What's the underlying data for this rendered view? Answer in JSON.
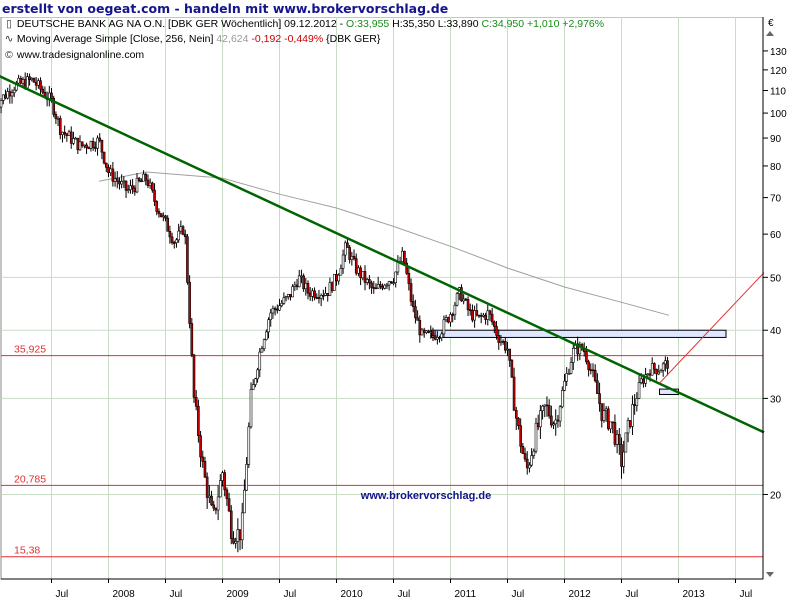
{
  "banner": {
    "text": "erstellt von oegeat.com - handeln mit www.brokervorschlag.de"
  },
  "header": {
    "line1_name": "DEUTSCHE BANK AG NA O.N. [DBK GER  Wöchentlich] 09.12.2012 - ",
    "line1_ohlc_o": "O:33,955",
    "line1_ohlc_hl": " H:35,350 L:33,890 ",
    "line1_close": "C:34,950 +1,010 +2,976%",
    "line2_name": "Moving Average Simple [Close, 256, Nein] ",
    "line2_value": "42,624",
    "line2_change": " -0,192 -0,449%",
    "line2_suffix": " {DBK GER}",
    "line3": "www.tradesignalonline.com",
    "icon1": "candlestick-icon",
    "icon2": "moving-average-icon",
    "icon3": "copyright-icon"
  },
  "currency_symbol": "€",
  "watermark": "www.brokervorschlag.de",
  "colors": {
    "up": "#ffffff",
    "down": "#c00000",
    "wick": "#000000",
    "trendline": "#006400",
    "ma": "#a0a0a0",
    "level": "#e03030",
    "projection": "#e03030",
    "banner": "#14148c",
    "watermark": "#14148c"
  },
  "chart_data": {
    "type": "candlestick",
    "scale": "log",
    "ylim": [
      14,
      150
    ],
    "y_ticks": [
      20,
      30,
      40,
      50,
      60,
      70,
      80,
      90,
      100,
      110,
      120,
      130
    ],
    "x_ticks": [
      "Jul",
      "2008",
      "Jul",
      "2009",
      "Jul",
      "2010",
      "Jul",
      "2011",
      "Jul",
      "2012",
      "Jul",
      "2013",
      "Jul"
    ],
    "x_tick_dates": [
      "2007-07",
      "2008-01",
      "2008-07",
      "2009-01",
      "2009-07",
      "2010-01",
      "2010-07",
      "2011-01",
      "2011-07",
      "2012-01",
      "2012-07",
      "2013-01",
      "2013-07"
    ],
    "price_path": [
      [
        "2007-01",
        103
      ],
      [
        "2007-03",
        112
      ],
      [
        "2007-05",
        115
      ],
      [
        "2007-07",
        105
      ],
      [
        "2007-08",
        93
      ],
      [
        "2007-10",
        87
      ],
      [
        "2007-12",
        89
      ],
      [
        "2008-01",
        78
      ],
      [
        "2008-03",
        72
      ],
      [
        "2008-05",
        76
      ],
      [
        "2008-06",
        68
      ],
      [
        "2008-08",
        58
      ],
      [
        "2008-09",
        62
      ],
      [
        "2008-10",
        30
      ],
      [
        "2008-11",
        22
      ],
      [
        "2008-12",
        18
      ],
      [
        "2009-01",
        22
      ],
      [
        "2009-02",
        17
      ],
      [
        "2009-03",
        17
      ],
      [
        "2009-04",
        30
      ],
      [
        "2009-05",
        37
      ],
      [
        "2009-06",
        43
      ],
      [
        "2009-08",
        46
      ],
      [
        "2009-09",
        50
      ],
      [
        "2009-10",
        47
      ],
      [
        "2009-12",
        47
      ],
      [
        "2010-01",
        50
      ],
      [
        "2010-02",
        57
      ],
      [
        "2010-03",
        52
      ],
      [
        "2010-05",
        47
      ],
      [
        "2010-06",
        49
      ],
      [
        "2010-07",
        50
      ],
      [
        "2010-08",
        55
      ],
      [
        "2010-09",
        44
      ],
      [
        "2010-10",
        39
      ],
      [
        "2010-11",
        39
      ],
      [
        "2010-12",
        40
      ],
      [
        "2011-01",
        43
      ],
      [
        "2011-02",
        47
      ],
      [
        "2011-03",
        43
      ],
      [
        "2011-04",
        42
      ],
      [
        "2011-05",
        43
      ],
      [
        "2011-06",
        39
      ],
      [
        "2011-07",
        37
      ],
      [
        "2011-08",
        27
      ],
      [
        "2011-09",
        22
      ],
      [
        "2011-10",
        26
      ],
      [
        "2011-11",
        29
      ],
      [
        "2011-12",
        27
      ],
      [
        "2012-01",
        32
      ],
      [
        "2012-02",
        37
      ],
      [
        "2012-03",
        37
      ],
      [
        "2012-04",
        33
      ],
      [
        "2012-05",
        28
      ],
      [
        "2012-06",
        27
      ],
      [
        "2012-07",
        23
      ],
      [
        "2012-08",
        28
      ],
      [
        "2012-09",
        32
      ],
      [
        "2012-10",
        34
      ],
      [
        "2012-11",
        34
      ],
      [
        "2012-12",
        34.95
      ]
    ],
    "moving_average": {
      "name": "Moving Average Simple [Close, 256, Nein]",
      "points": [
        [
          "2007-12",
          75
        ],
        [
          "2008-05",
          78
        ],
        [
          "2009-01",
          76
        ],
        [
          "2009-07",
          71
        ],
        [
          "2010-01",
          67
        ],
        [
          "2010-07",
          62
        ],
        [
          "2011-01",
          57
        ],
        [
          "2011-07",
          52
        ],
        [
          "2012-01",
          48
        ],
        [
          "2012-07",
          45
        ],
        [
          "2012-12",
          42.6
        ]
      ]
    },
    "trendline": {
      "start": [
        "2007-01",
        118
      ],
      "end": [
        "2013-10",
        26
      ]
    },
    "projection": {
      "start": [
        "2012-11",
        32
      ],
      "end": [
        "2013-10",
        51
      ]
    },
    "horizontal_levels": [
      {
        "label": "35,925",
        "value": 35.925
      },
      {
        "label": "20,785",
        "value": 20.785
      },
      {
        "label": "15,38",
        "value": 15.38
      }
    ],
    "zones": [
      {
        "start": "2010-11",
        "end": "2013-06",
        "low": 38.8,
        "high": 40.0
      },
      {
        "start": "2012-11",
        "end": "2013-01",
        "low": 30.5,
        "high": 31.2
      }
    ],
    "last": {
      "date": "2012-12-09",
      "open": 33.955,
      "high": 35.35,
      "low": 33.89,
      "close": 34.95
    }
  }
}
